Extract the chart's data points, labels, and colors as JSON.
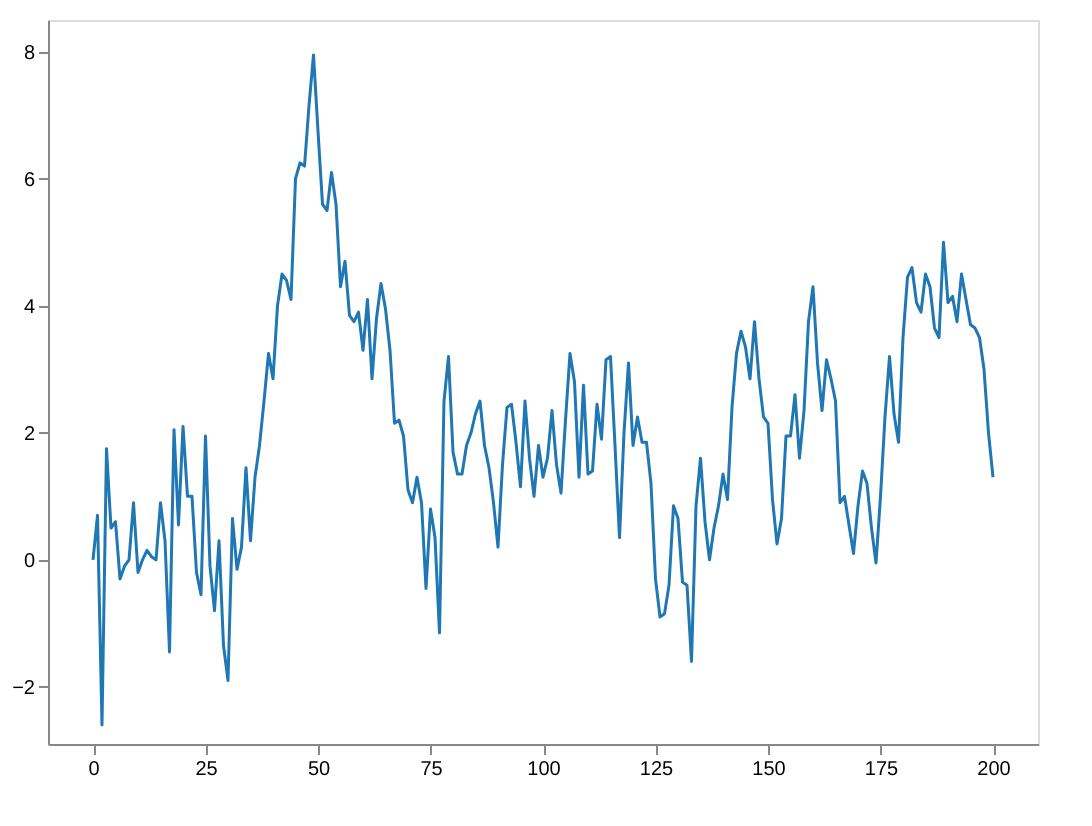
{
  "chart_data": {
    "type": "line",
    "x": [
      0,
      1,
      2,
      3,
      4,
      5,
      6,
      7,
      8,
      9,
      10,
      11,
      12,
      13,
      14,
      15,
      16,
      17,
      18,
      19,
      20,
      21,
      22,
      23,
      24,
      25,
      26,
      27,
      28,
      29,
      30,
      31,
      32,
      33,
      34,
      35,
      36,
      37,
      38,
      39,
      40,
      41,
      42,
      43,
      44,
      45,
      46,
      47,
      48,
      49,
      50,
      51,
      52,
      53,
      54,
      55,
      56,
      57,
      58,
      59,
      60,
      61,
      62,
      63,
      64,
      65,
      66,
      67,
      68,
      69,
      70,
      71,
      72,
      73,
      74,
      75,
      76,
      77,
      78,
      79,
      80,
      81,
      82,
      83,
      84,
      85,
      86,
      87,
      88,
      89,
      90,
      91,
      92,
      93,
      94,
      95,
      96,
      97,
      98,
      99,
      100,
      101,
      102,
      103,
      104,
      105,
      106,
      107,
      108,
      109,
      110,
      111,
      112,
      113,
      114,
      115,
      116,
      117,
      118,
      119,
      120,
      121,
      122,
      123,
      124,
      125,
      126,
      127,
      128,
      129,
      130,
      131,
      132,
      133,
      134,
      135,
      136,
      137,
      138,
      139,
      140,
      141,
      142,
      143,
      144,
      145,
      146,
      147,
      148,
      149,
      150,
      151,
      152,
      153,
      154,
      155,
      156,
      157,
      158,
      159,
      160,
      161,
      162,
      163,
      164,
      165,
      166,
      167,
      168,
      169,
      170,
      171,
      172,
      173,
      174,
      175,
      176,
      177,
      178,
      179,
      180,
      181,
      182,
      183,
      184,
      185,
      186,
      187,
      188,
      189,
      190,
      191,
      192,
      193,
      194,
      195,
      196,
      197,
      198,
      199,
      200
    ],
    "series": [
      {
        "color": "#1f77b4",
        "values": [
          0,
          0.7,
          -2.6,
          1.75,
          0.5,
          0.6,
          -0.3,
          -0.1,
          0.0,
          0.9,
          -0.2,
          0.0,
          0.15,
          0.05,
          0.0,
          0.9,
          0.3,
          -1.45,
          2.05,
          0.55,
          2.1,
          1.0,
          1.0,
          -0.2,
          -0.55,
          1.95,
          -0.1,
          -0.8,
          0.3,
          -1.35,
          -1.9,
          0.65,
          -0.15,
          0.2,
          1.45,
          0.3,
          1.3,
          1.8,
          2.5,
          3.25,
          2.85,
          4.0,
          4.5,
          4.4,
          4.1,
          6.0,
          6.25,
          6.2,
          7.15,
          7.95,
          6.75,
          5.6,
          5.5,
          6.1,
          5.6,
          4.3,
          4.7,
          3.85,
          3.75,
          3.9,
          3.3,
          4.1,
          2.85,
          3.8,
          4.35,
          3.95,
          3.3,
          2.15,
          2.2,
          1.95,
          1.1,
          0.9,
          1.3,
          0.9,
          -0.45,
          0.8,
          0.35,
          -1.15,
          2.5,
          3.2,
          1.7,
          1.35,
          1.35,
          1.8,
          2.0,
          2.3,
          2.5,
          1.8,
          1.45,
          0.9,
          0.2,
          1.5,
          2.4,
          2.45,
          1.85,
          1.15,
          2.5,
          1.6,
          1.0,
          1.8,
          1.3,
          1.6,
          2.35,
          1.5,
          1.05,
          2.2,
          3.25,
          2.8,
          1.3,
          2.75,
          1.35,
          1.4,
          2.45,
          1.9,
          3.15,
          3.2,
          1.8,
          0.35,
          2.0,
          3.1,
          1.8,
          2.25,
          1.85,
          1.85,
          1.2,
          -0.3,
          -0.9,
          -0.85,
          -0.4,
          0.85,
          0.65,
          -0.35,
          -0.4,
          -1.6,
          0.85,
          1.6,
          0.6,
          0.0,
          0.5,
          0.85,
          1.35,
          0.95,
          2.4,
          3.25,
          3.6,
          3.35,
          2.85,
          3.75,
          2.85,
          2.25,
          2.15,
          0.95,
          0.25,
          0.65,
          1.95,
          1.95,
          2.6,
          1.6,
          2.35,
          3.75,
          4.3,
          3.1,
          2.35,
          3.15,
          2.85,
          2.5,
          0.9,
          1.0,
          0.55,
          0.1,
          0.85,
          1.4,
          1.2,
          0.5,
          -0.05,
          1.0,
          2.25,
          3.2,
          2.3,
          1.85,
          3.5,
          4.45,
          4.6,
          4.05,
          3.9,
          4.5,
          4.3,
          3.65,
          3.5,
          5.0,
          4.05,
          4.15,
          3.75,
          4.5,
          4.1,
          3.7,
          3.65,
          3.5,
          3.0,
          2.0,
          1.3
        ]
      }
    ],
    "xlim": [
      -10,
      210
    ],
    "xticks": [
      0,
      25,
      50,
      75,
      100,
      125,
      150,
      175,
      200
    ],
    "ylim": [
      -2.9,
      8.5
    ],
    "yticks": [
      -2,
      0,
      2,
      4,
      6,
      8
    ],
    "grid": false,
    "marker": "none",
    "line_style": "solid"
  }
}
